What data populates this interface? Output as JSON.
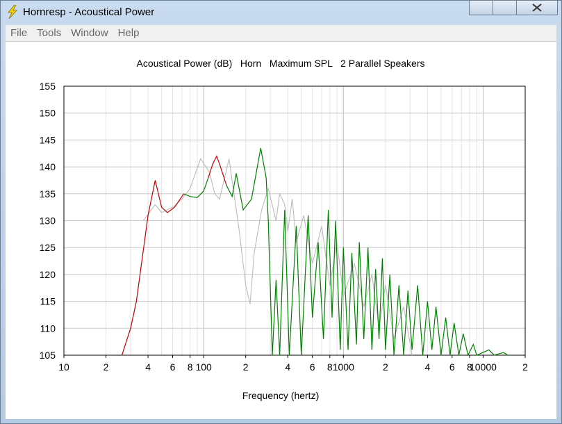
{
  "window": {
    "title": "Hornresp - Acoustical Power"
  },
  "menu": [
    "File",
    "Tools",
    "Window",
    "Help"
  ],
  "chart_data": {
    "type": "line",
    "title": "Acoustical Power (dB)   Horn   Maximum SPL   2 Parallel Speakers",
    "x_label": "Frequency (hertz)",
    "x_scale": "log",
    "minor_grid": true,
    "grid": true,
    "xlim": [
      10,
      20000
    ],
    "ylim": [
      105,
      155
    ],
    "yticks": [
      105,
      110,
      115,
      120,
      125,
      130,
      135,
      140,
      145,
      150,
      155
    ],
    "xticks": [
      10,
      {
        "value": 20,
        "label": "2"
      },
      {
        "value": 40,
        "label": "4"
      },
      {
        "value": 60,
        "label": "6"
      },
      {
        "value": 80,
        "label": "8"
      },
      100,
      {
        "value": 200,
        "label": "2"
      },
      {
        "value": 400,
        "label": "4"
      },
      {
        "value": 600,
        "label": "6"
      },
      {
        "value": 800,
        "label": "8"
      },
      1000,
      {
        "value": 2000,
        "label": "2"
      },
      {
        "value": 4000,
        "label": "4"
      },
      {
        "value": 6000,
        "label": "6"
      },
      {
        "value": 8000,
        "label": "8"
      },
      10000,
      {
        "value": 20000,
        "label": "2"
      }
    ],
    "series": [
      {
        "color": "#c0c0c0",
        "x": [
          37,
          45,
          50,
          60,
          70,
          80,
          95,
          110,
          120,
          130,
          152,
          165,
          180,
          200,
          215,
          230,
          260,
          290,
          330,
          350,
          380,
          400,
          430,
          460,
          520,
          600,
          700,
          800,
          900,
          1000,
          1200,
          1400,
          1600,
          1800,
          2000,
          2300,
          2700,
          3100
        ],
        "values": [
          130,
          133,
          131.5,
          132.5,
          134,
          136,
          141.5,
          139,
          135,
          134,
          141.5,
          135,
          128,
          118,
          114.5,
          124,
          132,
          136,
          130,
          135,
          133,
          128,
          134,
          126,
          131,
          122,
          129,
          118,
          126,
          116,
          122,
          114,
          120,
          110,
          118,
          108,
          114,
          105
        ]
      },
      {
        "color": "#008000",
        "x": [
          72,
          80,
          90,
          100,
          108,
          124,
          146,
          160,
          171,
          192,
          220,
          256,
          280,
          290,
          310,
          330,
          350,
          380,
          410,
          460,
          500,
          560,
          600,
          660,
          720,
          780,
          830,
          880,
          950,
          1000,
          1080,
          1150,
          1240,
          1300,
          1400,
          1500,
          1600,
          1700,
          1800,
          1900,
          2000,
          2150,
          2300,
          2500,
          2700,
          2900,
          3100,
          3400,
          3700,
          4000,
          4300,
          4600,
          5000,
          5400,
          5800,
          6200,
          6700,
          7200,
          7800,
          8500,
          9000,
          11000,
          12000,
          14000,
          15000
        ],
        "values": [
          135,
          134.5,
          134.3,
          135.5,
          138,
          null,
          136.5,
          134.5,
          138.8,
          132,
          134,
          143.5,
          138,
          130,
          105,
          119,
          105,
          132,
          105,
          129,
          105,
          131,
          112,
          126,
          108,
          132,
          112,
          130,
          106,
          125,
          106,
          124,
          107,
          126,
          108,
          125,
          106,
          121,
          108,
          123,
          106,
          120,
          105,
          118,
          105,
          117,
          106,
          118,
          105,
          115,
          106,
          114,
          105,
          112,
          105,
          111,
          105,
          109,
          105,
          107,
          105,
          106,
          105,
          105.5,
          105
        ]
      },
      {
        "color": "#c00000",
        "x": [
          26,
          30,
          33,
          37,
          40,
          45,
          50,
          55,
          62,
          72,
          90,
          108,
          116,
          124,
          132,
          146
        ],
        "values": [
          105,
          110,
          115,
          124.5,
          131,
          137.5,
          132.5,
          131.5,
          132.5,
          135,
          null,
          138,
          140.5,
          142,
          140,
          136.5
        ]
      }
    ]
  }
}
